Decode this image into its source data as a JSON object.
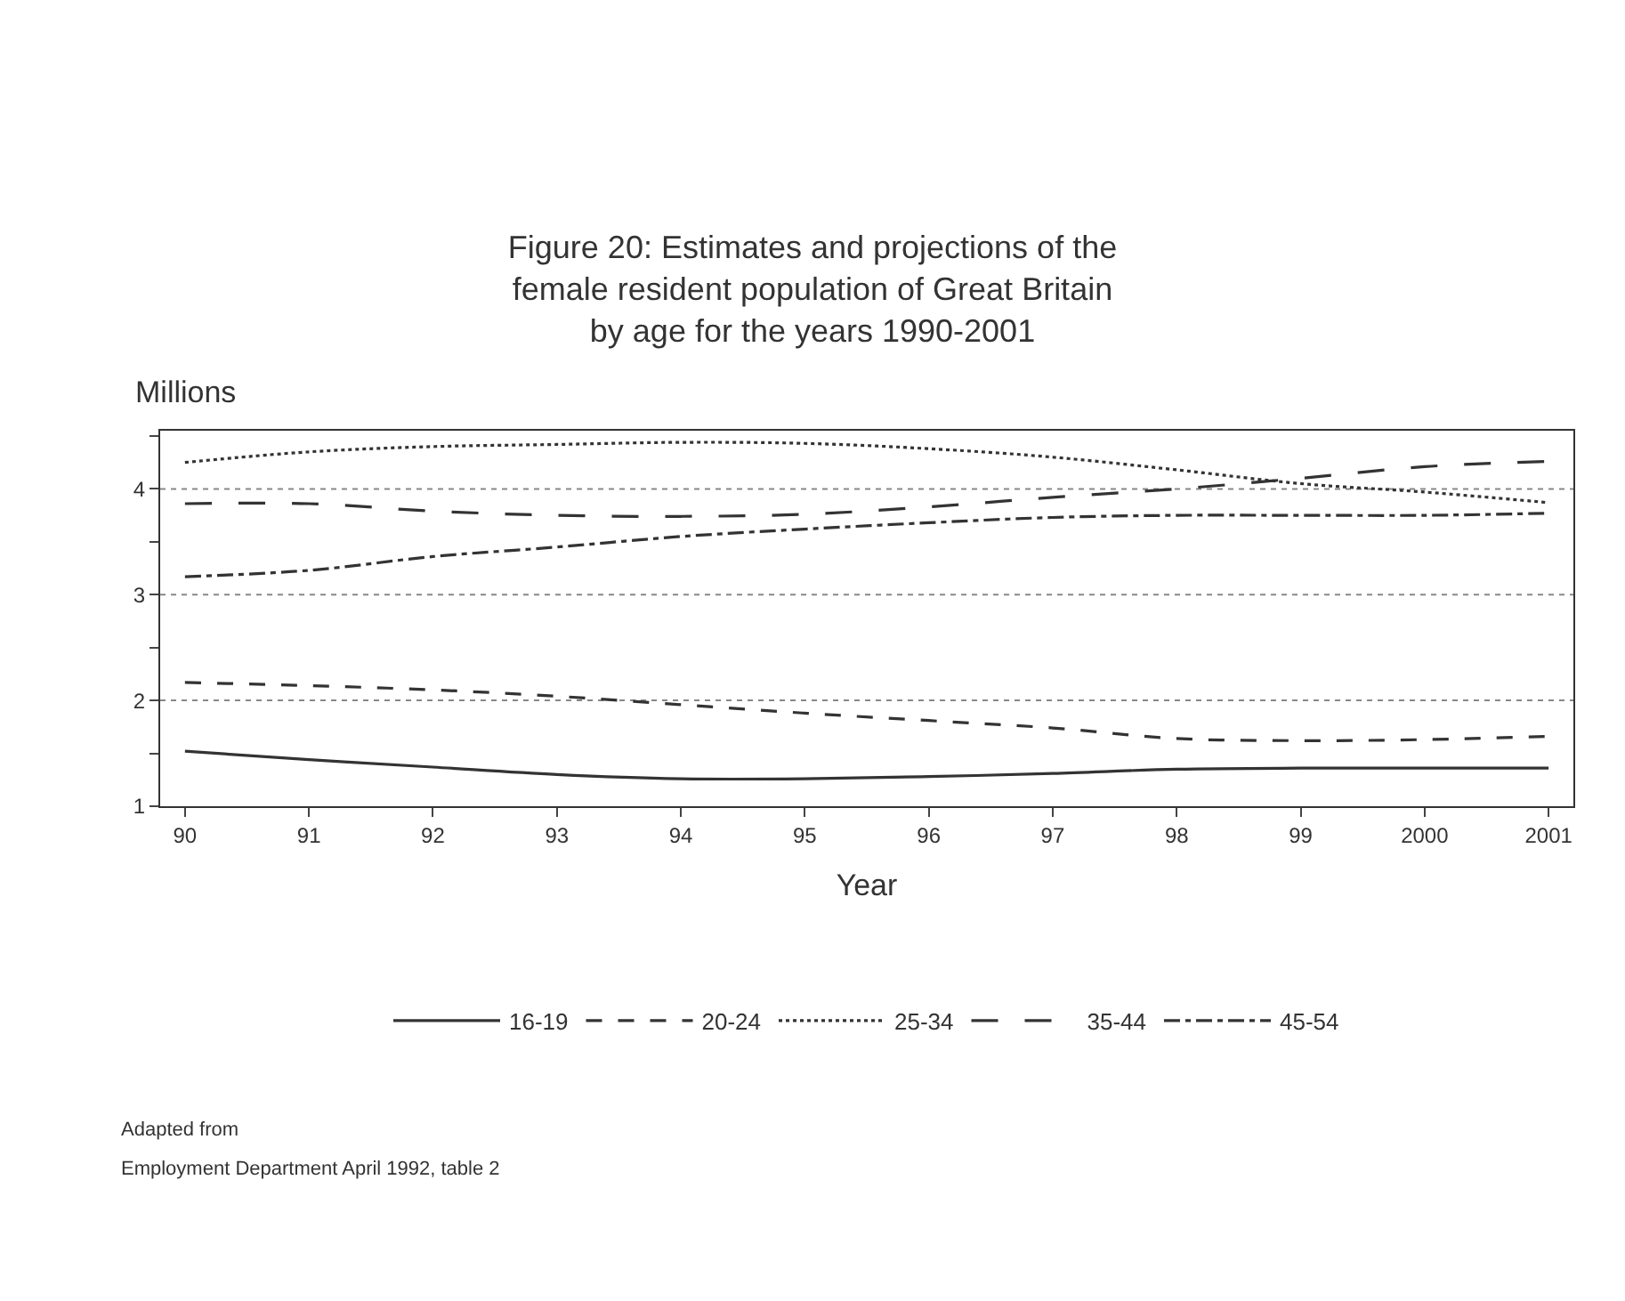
{
  "chart_data": {
    "type": "line",
    "title": "Figure 20: Estimates and projections of the\nfemale resident population of Great Britain\nby age for the years 1990-2001",
    "xlabel": "Year",
    "ylabel": "Millions",
    "x": [
      1990,
      1991,
      1992,
      1993,
      1994,
      1995,
      1996,
      1997,
      1998,
      1999,
      2000,
      2001
    ],
    "series": [
      {
        "name": "16-19",
        "color": "#333333",
        "line_style": "solid",
        "values": [
          1.52,
          1.44,
          1.37,
          1.3,
          1.26,
          1.26,
          1.28,
          1.31,
          1.35,
          1.36,
          1.36,
          1.36
        ]
      },
      {
        "name": "20-24",
        "color": "#333333",
        "line_style": "dashed",
        "values": [
          2.17,
          2.14,
          2.1,
          2.04,
          1.96,
          1.88,
          1.81,
          1.74,
          1.64,
          1.62,
          1.63,
          1.66
        ]
      },
      {
        "name": "25-34",
        "color": "#333333",
        "line_style": "dotted",
        "values": [
          4.25,
          4.35,
          4.4,
          4.42,
          4.44,
          4.43,
          4.38,
          4.3,
          4.18,
          4.05,
          3.97,
          3.87
        ]
      },
      {
        "name": "35-44",
        "color": "#333333",
        "line_style": "longdash",
        "values": [
          3.86,
          3.86,
          3.79,
          3.75,
          3.74,
          3.76,
          3.83,
          3.92,
          4.0,
          4.1,
          4.21,
          4.26
        ]
      },
      {
        "name": "45-54",
        "color": "#333333",
        "line_style": "dashdot",
        "values": [
          3.17,
          3.23,
          3.36,
          3.45,
          3.55,
          3.62,
          3.68,
          3.73,
          3.75,
          3.75,
          3.75,
          3.77
        ]
      }
    ],
    "xlim": [
      1989.8,
      2001.2
    ],
    "xticks": [
      {
        "value": 1990,
        "label": "90"
      },
      {
        "value": 1991,
        "label": "91"
      },
      {
        "value": 1992,
        "label": "92"
      },
      {
        "value": 1993,
        "label": "93"
      },
      {
        "value": 1994,
        "label": "94"
      },
      {
        "value": 1995,
        "label": "95"
      },
      {
        "value": 1996,
        "label": "96"
      },
      {
        "value": 1997,
        "label": "97"
      },
      {
        "value": 1998,
        "label": "98"
      },
      {
        "value": 1999,
        "label": "99"
      },
      2000,
      2001
    ],
    "ylim": [
      1,
      4.55
    ],
    "yticks": [
      1,
      {
        "value": 1.5,
        "label": null
      },
      2,
      {
        "value": 2.5,
        "label": null
      },
      3,
      {
        "value": 3.5,
        "label": null
      },
      4,
      {
        "value": 4.5,
        "label": null
      }
    ],
    "grid": "y",
    "legend": "bottom",
    "marker": "none",
    "annotations": [
      "Adapted from",
      "Employment Department April 1992, table 2"
    ]
  }
}
